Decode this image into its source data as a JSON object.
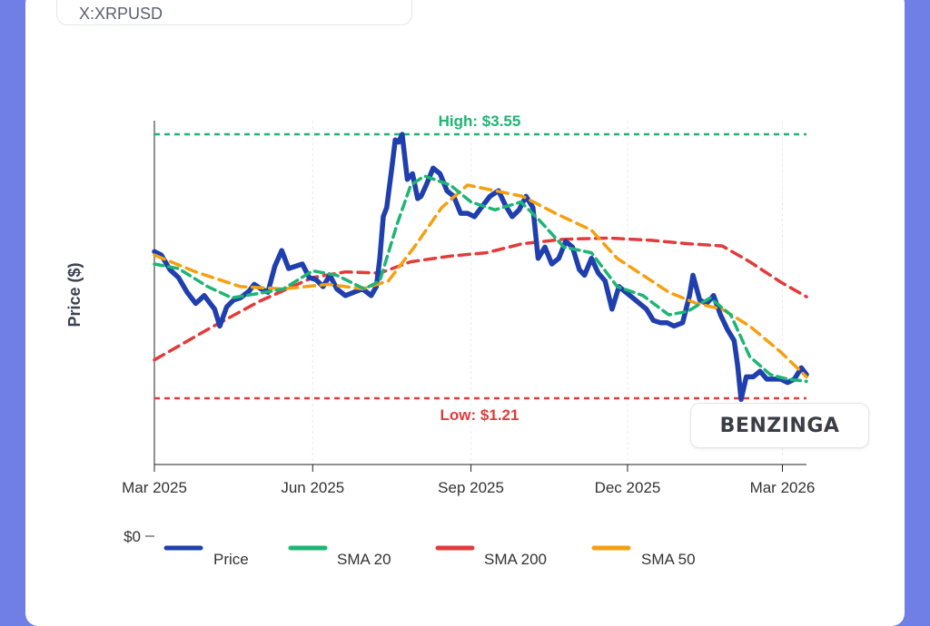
{
  "ticker": "X:XRPUSD",
  "watermark": "BENZINGA",
  "chart_data": {
    "type": "line",
    "ylabel": "Price ($)",
    "xlabel": "",
    "x_ticks": [
      "Mar 2025",
      "Jun 2025",
      "Sep 2025",
      "Dec 2025",
      "Mar 2026"
    ],
    "y_tick_labels": [
      "$0"
    ],
    "x_range": [
      "2025-03-01",
      "2026-03-15"
    ],
    "ylim": [
      0,
      3.6
    ],
    "grid": true,
    "legend_position": "bottom",
    "reference_lines": [
      {
        "label": "High: $3.55",
        "value": 3.55,
        "color": "#1db574"
      },
      {
        "label": "Low: $1.21",
        "value": 1.21,
        "color": "#e23b3b"
      }
    ],
    "series": [
      {
        "name": "Price",
        "color": "#1f3fae",
        "points": [
          [
            "2025-03-01",
            2.51
          ],
          [
            "2025-03-05",
            2.48
          ],
          [
            "2025-03-10",
            2.35
          ],
          [
            "2025-03-15",
            2.28
          ],
          [
            "2025-03-20",
            2.15
          ],
          [
            "2025-03-25",
            2.05
          ],
          [
            "2025-03-30",
            2.12
          ],
          [
            "2025-04-05",
            2.0
          ],
          [
            "2025-04-08",
            1.85
          ],
          [
            "2025-04-12",
            2.02
          ],
          [
            "2025-04-16",
            2.08
          ],
          [
            "2025-04-20",
            2.1
          ],
          [
            "2025-04-25",
            2.16
          ],
          [
            "2025-04-28",
            2.22
          ],
          [
            "2025-05-02",
            2.18
          ],
          [
            "2025-05-06",
            2.15
          ],
          [
            "2025-05-10",
            2.38
          ],
          [
            "2025-05-14",
            2.52
          ],
          [
            "2025-05-18",
            2.36
          ],
          [
            "2025-05-22",
            2.38
          ],
          [
            "2025-05-26",
            2.4
          ],
          [
            "2025-05-30",
            2.28
          ],
          [
            "2025-06-03",
            2.26
          ],
          [
            "2025-06-07",
            2.2
          ],
          [
            "2025-06-11",
            2.3
          ],
          [
            "2025-06-15",
            2.18
          ],
          [
            "2025-06-20",
            2.12
          ],
          [
            "2025-06-25",
            2.15
          ],
          [
            "2025-06-30",
            2.18
          ],
          [
            "2025-07-05",
            2.12
          ],
          [
            "2025-07-08",
            2.2
          ],
          [
            "2025-07-10",
            2.45
          ],
          [
            "2025-07-12",
            2.82
          ],
          [
            "2025-07-14",
            2.9
          ],
          [
            "2025-07-17",
            3.25
          ],
          [
            "2025-07-19",
            3.5
          ],
          [
            "2025-07-21",
            3.48
          ],
          [
            "2025-07-23",
            3.55
          ],
          [
            "2025-07-26",
            3.15
          ],
          [
            "2025-07-29",
            3.2
          ],
          [
            "2025-08-01",
            2.98
          ],
          [
            "2025-08-03",
            3.0
          ],
          [
            "2025-08-06",
            3.1
          ],
          [
            "2025-08-10",
            3.25
          ],
          [
            "2025-08-14",
            3.2
          ],
          [
            "2025-08-18",
            3.05
          ],
          [
            "2025-08-22",
            3.0
          ],
          [
            "2025-08-26",
            2.85
          ],
          [
            "2025-08-30",
            2.85
          ],
          [
            "2025-09-03",
            2.82
          ],
          [
            "2025-09-07",
            2.9
          ],
          [
            "2025-09-12",
            3.0
          ],
          [
            "2025-09-17",
            3.05
          ],
          [
            "2025-09-21",
            2.92
          ],
          [
            "2025-09-25",
            2.82
          ],
          [
            "2025-09-29",
            2.88
          ],
          [
            "2025-10-03",
            3.0
          ],
          [
            "2025-10-07",
            2.9
          ],
          [
            "2025-10-10",
            2.45
          ],
          [
            "2025-10-14",
            2.55
          ],
          [
            "2025-10-18",
            2.4
          ],
          [
            "2025-10-22",
            2.45
          ],
          [
            "2025-10-26",
            2.6
          ],
          [
            "2025-10-30",
            2.55
          ],
          [
            "2025-11-03",
            2.35
          ],
          [
            "2025-11-06",
            2.3
          ],
          [
            "2025-11-10",
            2.45
          ],
          [
            "2025-11-14",
            2.32
          ],
          [
            "2025-11-18",
            2.25
          ],
          [
            "2025-11-22",
            2.0
          ],
          [
            "2025-11-26",
            2.2
          ],
          [
            "2025-11-30",
            2.15
          ],
          [
            "2025-12-04",
            2.1
          ],
          [
            "2025-12-08",
            2.05
          ],
          [
            "2025-12-12",
            2.0
          ],
          [
            "2025-12-16",
            1.9
          ],
          [
            "2025-12-20",
            1.88
          ],
          [
            "2025-12-24",
            1.88
          ],
          [
            "2025-12-28",
            1.85
          ],
          [
            "2026-01-02",
            1.88
          ],
          [
            "2026-01-06",
            2.12
          ],
          [
            "2026-01-08",
            2.3
          ],
          [
            "2026-01-12",
            2.08
          ],
          [
            "2026-01-16",
            2.05
          ],
          [
            "2026-01-20",
            2.12
          ],
          [
            "2026-01-24",
            1.95
          ],
          [
            "2026-01-28",
            1.82
          ],
          [
            "2026-02-01",
            1.72
          ],
          [
            "2026-02-03",
            1.5
          ],
          [
            "2026-02-05",
            1.2
          ],
          [
            "2026-02-08",
            1.4
          ],
          [
            "2026-02-12",
            1.4
          ],
          [
            "2026-02-16",
            1.45
          ],
          [
            "2026-02-20",
            1.38
          ],
          [
            "2026-02-24",
            1.38
          ],
          [
            "2026-02-28",
            1.38
          ],
          [
            "2026-03-04",
            1.35
          ],
          [
            "2026-03-08",
            1.38
          ],
          [
            "2026-03-12",
            1.48
          ],
          [
            "2026-03-15",
            1.42
          ]
        ]
      },
      {
        "name": "SMA 20",
        "color": "#1db574",
        "points": [
          [
            "2025-03-01",
            2.4
          ],
          [
            "2025-03-15",
            2.36
          ],
          [
            "2025-04-01",
            2.2
          ],
          [
            "2025-04-15",
            2.1
          ],
          [
            "2025-05-01",
            2.14
          ],
          [
            "2025-05-15",
            2.18
          ],
          [
            "2025-06-01",
            2.34
          ],
          [
            "2025-06-15",
            2.3
          ],
          [
            "2025-07-01",
            2.18
          ],
          [
            "2025-07-10",
            2.25
          ],
          [
            "2025-07-20",
            2.75
          ],
          [
            "2025-07-28",
            3.1
          ],
          [
            "2025-08-05",
            3.18
          ],
          [
            "2025-08-20",
            3.1
          ],
          [
            "2025-09-01",
            2.95
          ],
          [
            "2025-09-15",
            2.88
          ],
          [
            "2025-09-30",
            2.95
          ],
          [
            "2025-10-10",
            2.8
          ],
          [
            "2025-10-25",
            2.55
          ],
          [
            "2025-11-10",
            2.5
          ],
          [
            "2025-11-25",
            2.2
          ],
          [
            "2025-12-10",
            2.12
          ],
          [
            "2025-12-25",
            1.95
          ],
          [
            "2026-01-05",
            1.98
          ],
          [
            "2026-01-18",
            2.1
          ],
          [
            "2026-01-30",
            1.95
          ],
          [
            "2026-02-10",
            1.58
          ],
          [
            "2026-02-22",
            1.42
          ],
          [
            "2026-03-04",
            1.38
          ],
          [
            "2026-03-15",
            1.36
          ]
        ]
      },
      {
        "name": "SMA 200",
        "color": "#e23b3b",
        "points": [
          [
            "2025-03-01",
            1.55
          ],
          [
            "2025-04-01",
            1.82
          ],
          [
            "2025-05-01",
            2.07
          ],
          [
            "2025-06-01",
            2.28
          ],
          [
            "2025-06-20",
            2.33
          ],
          [
            "2025-07-10",
            2.32
          ],
          [
            "2025-07-28",
            2.42
          ],
          [
            "2025-08-20",
            2.47
          ],
          [
            "2025-09-10",
            2.5
          ],
          [
            "2025-10-01",
            2.58
          ],
          [
            "2025-10-25",
            2.62
          ],
          [
            "2025-11-20",
            2.63
          ],
          [
            "2025-12-15",
            2.61
          ],
          [
            "2026-01-05",
            2.58
          ],
          [
            "2026-01-25",
            2.56
          ],
          [
            "2026-02-10",
            2.42
          ],
          [
            "2026-02-28",
            2.24
          ],
          [
            "2026-03-15",
            2.11
          ]
        ]
      },
      {
        "name": "SMA 50",
        "color": "#f4a010",
        "points": [
          [
            "2025-03-01",
            2.48
          ],
          [
            "2025-03-25",
            2.33
          ],
          [
            "2025-04-20",
            2.2
          ],
          [
            "2025-05-15",
            2.18
          ],
          [
            "2025-06-10",
            2.22
          ],
          [
            "2025-06-30",
            2.18
          ],
          [
            "2025-07-15",
            2.25
          ],
          [
            "2025-07-30",
            2.55
          ],
          [
            "2025-08-15",
            2.9
          ],
          [
            "2025-08-30",
            3.1
          ],
          [
            "2025-09-15",
            3.05
          ],
          [
            "2025-10-01",
            3.0
          ],
          [
            "2025-10-20",
            2.85
          ],
          [
            "2025-11-10",
            2.7
          ],
          [
            "2025-11-25",
            2.45
          ],
          [
            "2025-12-10",
            2.3
          ],
          [
            "2025-12-25",
            2.15
          ],
          [
            "2026-01-10",
            2.05
          ],
          [
            "2026-01-25",
            2.0
          ],
          [
            "2026-02-10",
            1.85
          ],
          [
            "2026-02-28",
            1.62
          ],
          [
            "2026-03-15",
            1.4
          ]
        ]
      }
    ]
  }
}
